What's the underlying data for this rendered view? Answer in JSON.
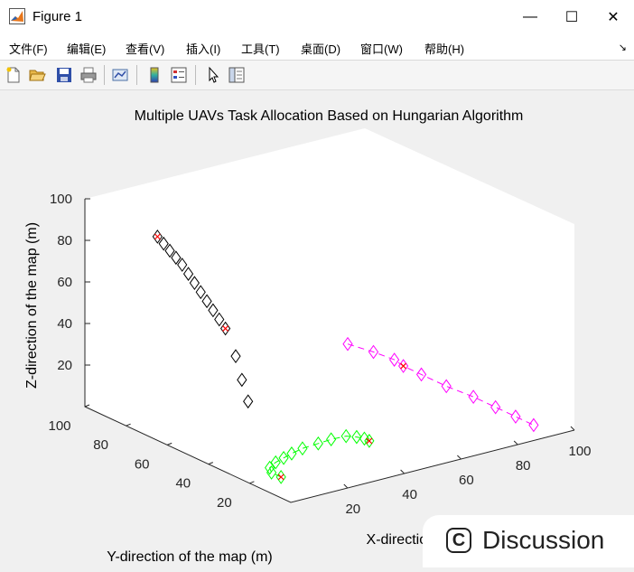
{
  "window": {
    "title": "Figure 1",
    "minimize_glyph": "—",
    "maximize_glyph": "☐",
    "close_glyph": "✕"
  },
  "menu": {
    "items": [
      "文件(F)",
      "编辑(E)",
      "查看(V)",
      "插入(I)",
      "工具(T)",
      "桌面(D)",
      "窗口(W)",
      "帮助(H)"
    ],
    "overflow_glyph": "↘"
  },
  "toolbar": {
    "icons": [
      "new-figure-icon",
      "open-file-icon",
      "save-icon",
      "print-icon",
      "link-plot-icon",
      "colorbar-icon",
      "legend-icon",
      "pointer-icon",
      "property-inspector-icon"
    ]
  },
  "overlay": {
    "discussion_label": "Discussion",
    "discussion_icon_glyph": "C"
  },
  "chart_data": {
    "type": "scatter3d",
    "title": "Multiple UAVs Task Allocation Based on Hungarian Algorithm",
    "xlabel": "X-direction of the map (m)",
    "ylabel": "Y-direction of the map (m)",
    "zlabel": "Z-direction of the map (m)",
    "xlim": [
      0,
      100
    ],
    "ylim": [
      0,
      100
    ],
    "zlim": [
      0,
      100
    ],
    "xticks": [
      "20",
      "40",
      "60",
      "80",
      "100"
    ],
    "yticks": [
      "20",
      "40",
      "60",
      "80",
      "100"
    ],
    "zticks": [
      "20",
      "40",
      "60",
      "80",
      "100"
    ],
    "grid": false,
    "marker": "diamond",
    "colors": {
      "black": "#000000",
      "green": "#00ff00",
      "magenta": "#ff00ff",
      "red_marker": "#ff0000",
      "axes_bg": "#ffffff",
      "figure_bg": "#f0f0f0"
    },
    "series": [
      {
        "color": "#000000",
        "line": "none",
        "points": [
          [
            -2,
            62,
            100
          ],
          [
            -2,
            59,
            98
          ],
          [
            -2,
            56,
            96
          ],
          [
            -2,
            53,
            94
          ],
          [
            -2,
            50,
            92
          ],
          [
            -2,
            47,
            89
          ],
          [
            -2,
            44,
            86
          ],
          [
            -2,
            41,
            83
          ],
          [
            -2,
            38,
            80
          ],
          [
            -2,
            35,
            77
          ],
          [
            -2,
            32,
            74
          ],
          [
            -2,
            29,
            71
          ],
          [
            -2,
            24,
            60
          ],
          [
            -2,
            21,
            50
          ],
          [
            -2,
            18,
            41
          ]
        ],
        "red_marked": [
          [
            -2,
            62,
            100
          ],
          [
            -2,
            29,
            71
          ]
        ]
      },
      {
        "color": "#00ff00",
        "line": "dashed",
        "points": [
          [
            -2,
            2,
            12
          ],
          [
            -1,
            8,
            11
          ],
          [
            2,
            13,
            10
          ],
          [
            7,
            17,
            9
          ],
          [
            12,
            20,
            8
          ],
          [
            17,
            23,
            7
          ],
          [
            23,
            26,
            6
          ],
          [
            30,
            28,
            5
          ],
          [
            36,
            30,
            4
          ],
          [
            42,
            31,
            3
          ],
          [
            45,
            30,
            2
          ],
          [
            47,
            29,
            1
          ],
          [
            48,
            28,
            0
          ]
        ],
        "red_marked": [
          [
            -2,
            2,
            12
          ],
          [
            48,
            28,
            0
          ]
        ]
      },
      {
        "color": "#ff00ff",
        "line": "dashed",
        "points": [
          [
            60,
            55,
            30
          ],
          [
            64,
            48,
            28
          ],
          [
            67,
            42,
            26
          ],
          [
            68,
            39,
            24
          ],
          [
            70,
            33,
            22
          ],
          [
            73,
            25,
            19
          ],
          [
            76,
            16,
            17
          ],
          [
            78,
            8,
            15
          ],
          [
            80,
            1,
            13
          ],
          [
            82,
            -5,
            11
          ]
        ],
        "red_marked": [
          [
            68,
            39,
            24
          ]
        ]
      }
    ]
  }
}
